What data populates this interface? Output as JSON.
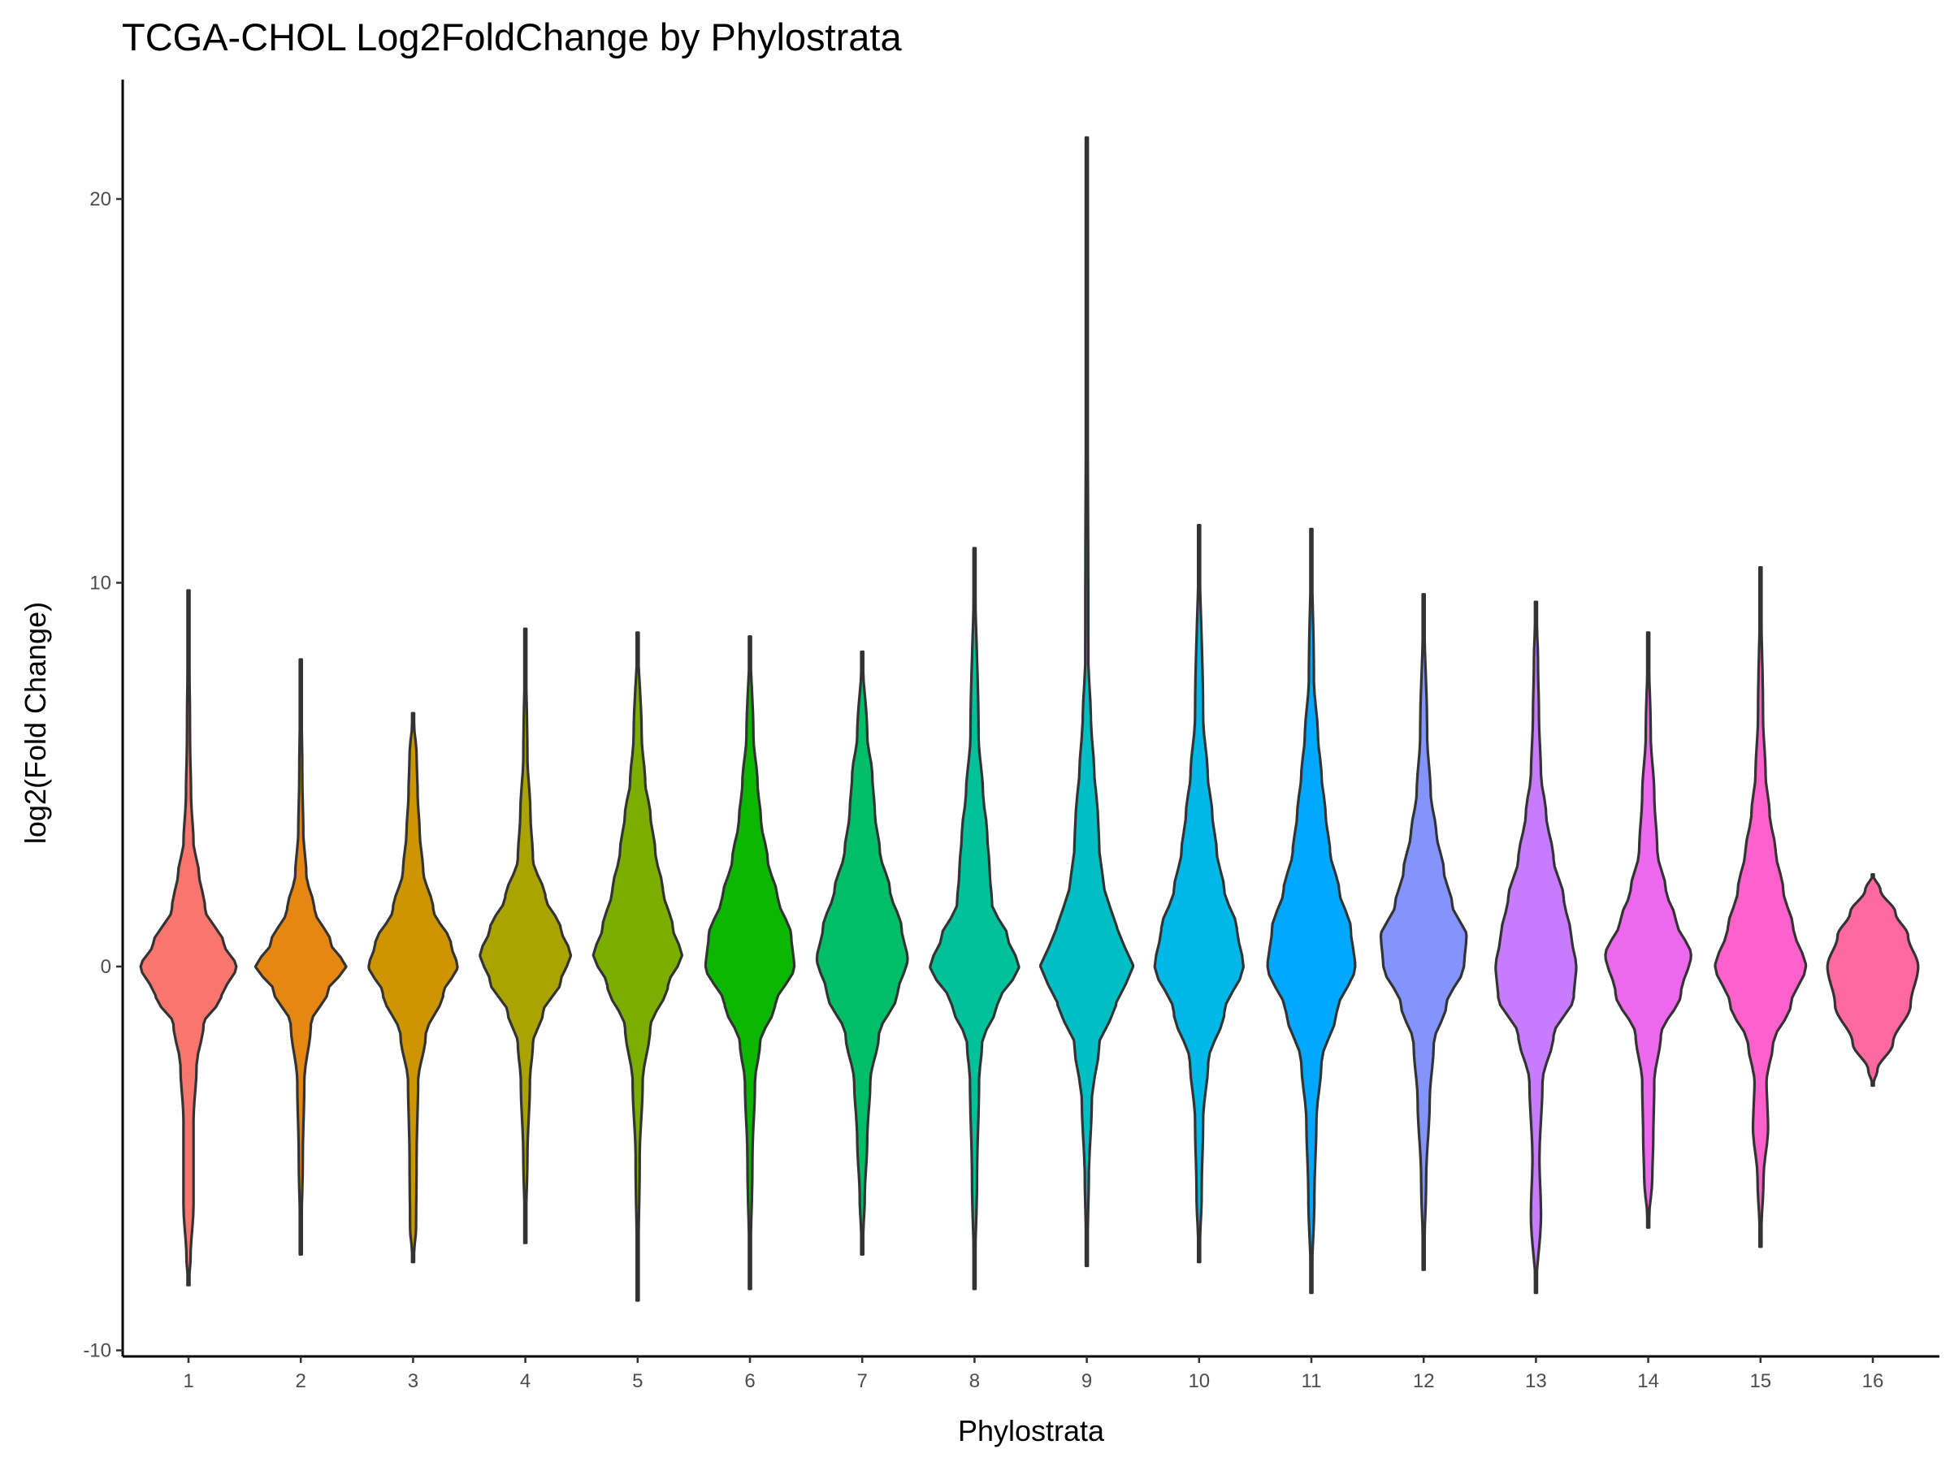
{
  "chart_data": {
    "type": "violin",
    "title": "TCGA-CHOL Log2FoldChange by Phylostrata",
    "xlabel": "Phylostrata",
    "ylabel": "log2(Fold Change)",
    "ylim": [
      -10.3,
      22.5
    ],
    "yticks": [
      -10,
      0,
      10,
      20
    ],
    "ytick_labels": [
      "-10",
      "0",
      "10",
      "20"
    ],
    "grid": false,
    "legend": "none",
    "categories": [
      "1",
      "2",
      "3",
      "4",
      "5",
      "6",
      "7",
      "8",
      "9",
      "10",
      "11",
      "12",
      "13",
      "14",
      "15",
      "16"
    ],
    "series": [
      {
        "category": "1",
        "color": "#F8766D",
        "min": -8.3,
        "max": 9.8,
        "profile": [
          [
            -8.3,
            0.0
          ],
          [
            -7.6,
            0.04
          ],
          [
            -6.2,
            0.1
          ],
          [
            -4,
            0.1
          ],
          [
            -2.6,
            0.16
          ],
          [
            -1.5,
            0.3
          ],
          [
            -0.8,
            0.65
          ],
          [
            0,
            0.95
          ],
          [
            0.6,
            0.7
          ],
          [
            1.5,
            0.33
          ],
          [
            2.5,
            0.2
          ],
          [
            3.2,
            0.1
          ],
          [
            4.5,
            0.05
          ],
          [
            6,
            0.03
          ],
          [
            9.8,
            0.0
          ]
        ]
      },
      {
        "category": "2",
        "color": "#E68613",
        "min": -7.5,
        "max": 8.0,
        "profile": [
          [
            -7.5,
            0.0
          ],
          [
            -5,
            0.04
          ],
          [
            -3,
            0.07
          ],
          [
            -1.5,
            0.2
          ],
          [
            -0.6,
            0.55
          ],
          [
            0,
            0.9
          ],
          [
            0.6,
            0.6
          ],
          [
            1.5,
            0.27
          ],
          [
            2.4,
            0.11
          ],
          [
            3.5,
            0.05
          ],
          [
            5,
            0.03
          ],
          [
            8,
            0.0
          ]
        ]
      },
      {
        "category": "3",
        "color": "#CD9600",
        "min": -7.7,
        "max": 6.6,
        "profile": [
          [
            -7.7,
            0.0
          ],
          [
            -6.8,
            0.06
          ],
          [
            -5,
            0.07
          ],
          [
            -3,
            0.1
          ],
          [
            -1.8,
            0.25
          ],
          [
            -0.7,
            0.6
          ],
          [
            0,
            0.88
          ],
          [
            0.6,
            0.75
          ],
          [
            1.5,
            0.4
          ],
          [
            2.5,
            0.2
          ],
          [
            3.5,
            0.13
          ],
          [
            4.5,
            0.09
          ],
          [
            5.5,
            0.07
          ],
          [
            6.6,
            0.0
          ]
        ]
      },
      {
        "category": "4",
        "color": "#ABA300",
        "min": -7.2,
        "max": 8.8,
        "profile": [
          [
            -7.2,
            0.0
          ],
          [
            -5,
            0.04
          ],
          [
            -3,
            0.09
          ],
          [
            -2,
            0.15
          ],
          [
            -1.2,
            0.35
          ],
          [
            -0.4,
            0.7
          ],
          [
            0.3,
            0.9
          ],
          [
            1,
            0.7
          ],
          [
            1.8,
            0.4
          ],
          [
            2.8,
            0.15
          ],
          [
            4,
            0.1
          ],
          [
            5.5,
            0.04
          ],
          [
            8.8,
            0.0
          ]
        ]
      },
      {
        "category": "5",
        "color": "#7CAE00",
        "min": -8.7,
        "max": 8.7,
        "profile": [
          [
            -8.7,
            0.0
          ],
          [
            -5,
            0.04
          ],
          [
            -3,
            0.1
          ],
          [
            -1.6,
            0.25
          ],
          [
            -0.5,
            0.6
          ],
          [
            0.3,
            0.88
          ],
          [
            1,
            0.7
          ],
          [
            2,
            0.5
          ],
          [
            3,
            0.35
          ],
          [
            4,
            0.25
          ],
          [
            4.8,
            0.15
          ],
          [
            6,
            0.08
          ],
          [
            8.7,
            0.0
          ]
        ]
      },
      {
        "category": "6",
        "color": "#0CB702",
        "min": -8.4,
        "max": 8.6,
        "profile": [
          [
            -8.4,
            0.0
          ],
          [
            -5,
            0.05
          ],
          [
            -3,
            0.1
          ],
          [
            -2,
            0.2
          ],
          [
            -1,
            0.5
          ],
          [
            0,
            0.88
          ],
          [
            0.8,
            0.82
          ],
          [
            1.8,
            0.55
          ],
          [
            2.8,
            0.35
          ],
          [
            3.8,
            0.22
          ],
          [
            4.8,
            0.15
          ],
          [
            6,
            0.07
          ],
          [
            8.6,
            0.0
          ]
        ]
      },
      {
        "category": "7",
        "color": "#00BE67",
        "min": -7.5,
        "max": 8.2,
        "profile": [
          [
            -7.5,
            0.0
          ],
          [
            -6,
            0.05
          ],
          [
            -4.5,
            0.1
          ],
          [
            -3,
            0.16
          ],
          [
            -1.8,
            0.33
          ],
          [
            -0.7,
            0.7
          ],
          [
            0.2,
            0.9
          ],
          [
            1,
            0.78
          ],
          [
            2,
            0.55
          ],
          [
            3,
            0.35
          ],
          [
            4,
            0.25
          ],
          [
            5,
            0.2
          ],
          [
            6,
            0.1
          ],
          [
            8.2,
            0.0
          ]
        ]
      },
      {
        "category": "8",
        "color": "#00C19A",
        "min": -8.4,
        "max": 10.9,
        "profile": [
          [
            -8.4,
            0.0
          ],
          [
            -5.5,
            0.05
          ],
          [
            -3,
            0.09
          ],
          [
            -2,
            0.15
          ],
          [
            -1,
            0.45
          ],
          [
            0,
            0.88
          ],
          [
            0.8,
            0.65
          ],
          [
            1.6,
            0.35
          ],
          [
            2.5,
            0.3
          ],
          [
            3.5,
            0.25
          ],
          [
            4.5,
            0.17
          ],
          [
            6,
            0.08
          ],
          [
            10.9,
            0.0
          ]
        ]
      },
      {
        "category": "9",
        "color": "#00BFC4",
        "min": -7.8,
        "max": 21.6,
        "profile": [
          [
            -7.8,
            0.0
          ],
          [
            -5.5,
            0.04
          ],
          [
            -3.5,
            0.1
          ],
          [
            -2,
            0.25
          ],
          [
            -1,
            0.58
          ],
          [
            0,
            0.92
          ],
          [
            1,
            0.6
          ],
          [
            2,
            0.35
          ],
          [
            3,
            0.25
          ],
          [
            4,
            0.22
          ],
          [
            5,
            0.15
          ],
          [
            6.5,
            0.08
          ],
          [
            8,
            0.03
          ],
          [
            21.6,
            0.0
          ]
        ]
      },
      {
        "category": "10",
        "color": "#00B8E7",
        "min": -7.7,
        "max": 11.5,
        "profile": [
          [
            -7.7,
            0.0
          ],
          [
            -6,
            0.05
          ],
          [
            -4,
            0.08
          ],
          [
            -2.5,
            0.18
          ],
          [
            -1.2,
            0.5
          ],
          [
            0,
            0.88
          ],
          [
            1,
            0.75
          ],
          [
            2,
            0.5
          ],
          [
            3,
            0.35
          ],
          [
            4,
            0.26
          ],
          [
            5,
            0.17
          ],
          [
            6.5,
            0.08
          ],
          [
            11.5,
            0.0
          ]
        ]
      },
      {
        "category": "11",
        "color": "#00A9FF",
        "min": -8.5,
        "max": 11.4,
        "profile": [
          [
            -8.5,
            0.0
          ],
          [
            -6,
            0.06
          ],
          [
            -4,
            0.1
          ],
          [
            -2.5,
            0.2
          ],
          [
            -1.2,
            0.5
          ],
          [
            0,
            0.87
          ],
          [
            1,
            0.78
          ],
          [
            2,
            0.55
          ],
          [
            3,
            0.37
          ],
          [
            4,
            0.28
          ],
          [
            5,
            0.2
          ],
          [
            6,
            0.13
          ],
          [
            7.5,
            0.05
          ],
          [
            11.4,
            0.0
          ]
        ]
      },
      {
        "category": "12",
        "color": "#8494FF",
        "min": -7.9,
        "max": 9.7,
        "profile": [
          [
            -7.9,
            0.0
          ],
          [
            -5.5,
            0.05
          ],
          [
            -3.5,
            0.12
          ],
          [
            -2,
            0.2
          ],
          [
            -1,
            0.45
          ],
          [
            0,
            0.8
          ],
          [
            0.8,
            0.85
          ],
          [
            1.6,
            0.57
          ],
          [
            2.5,
            0.4
          ],
          [
            3.5,
            0.25
          ],
          [
            4.5,
            0.14
          ],
          [
            6,
            0.07
          ],
          [
            9.7,
            0.0
          ]
        ]
      },
      {
        "category": "13",
        "color": "#C77CFF",
        "min": -8.5,
        "max": 9.5,
        "profile": [
          [
            -8.5,
            0.0
          ],
          [
            -6.5,
            0.1
          ],
          [
            -5,
            0.07
          ],
          [
            -3,
            0.13
          ],
          [
            -1.8,
            0.35
          ],
          [
            -0.8,
            0.75
          ],
          [
            0,
            0.8
          ],
          [
            0.8,
            0.7
          ],
          [
            1.8,
            0.55
          ],
          [
            2.8,
            0.35
          ],
          [
            4,
            0.2
          ],
          [
            5,
            0.1
          ],
          [
            6.5,
            0.06
          ],
          [
            8,
            0.04
          ],
          [
            9.5,
            0.0
          ]
        ]
      },
      {
        "category": "14",
        "color": "#ED68ED",
        "min": -6.8,
        "max": 8.7,
        "profile": [
          [
            -6.8,
            0.0
          ],
          [
            -5.5,
            0.08
          ],
          [
            -4.5,
            0.1
          ],
          [
            -3,
            0.12
          ],
          [
            -1.8,
            0.25
          ],
          [
            -0.7,
            0.65
          ],
          [
            0.3,
            0.85
          ],
          [
            1.2,
            0.55
          ],
          [
            2,
            0.35
          ],
          [
            3,
            0.18
          ],
          [
            4.5,
            0.12
          ],
          [
            6,
            0.05
          ],
          [
            8.7,
            0.0
          ]
        ]
      },
      {
        "category": "15",
        "color": "#FF61CC",
        "min": -7.3,
        "max": 10.4,
        "profile": [
          [
            -7.3,
            0.0
          ],
          [
            -5.5,
            0.06
          ],
          [
            -4.2,
            0.15
          ],
          [
            -3,
            0.12
          ],
          [
            -2,
            0.25
          ],
          [
            -1,
            0.6
          ],
          [
            0,
            0.9
          ],
          [
            1,
            0.65
          ],
          [
            2,
            0.45
          ],
          [
            3,
            0.3
          ],
          [
            4,
            0.18
          ],
          [
            5,
            0.1
          ],
          [
            6.5,
            0.05
          ],
          [
            10.4,
            0.0
          ]
        ]
      },
      {
        "category": "16",
        "color": "#FF68A1",
        "min": -3.1,
        "max": 2.4,
        "profile": [
          [
            -3.1,
            0.0
          ],
          [
            -2.7,
            0.09
          ],
          [
            -2,
            0.4
          ],
          [
            -1,
            0.75
          ],
          [
            0,
            0.9
          ],
          [
            0.8,
            0.7
          ],
          [
            1.4,
            0.45
          ],
          [
            2,
            0.15
          ],
          [
            2.4,
            0.0
          ]
        ]
      }
    ]
  }
}
